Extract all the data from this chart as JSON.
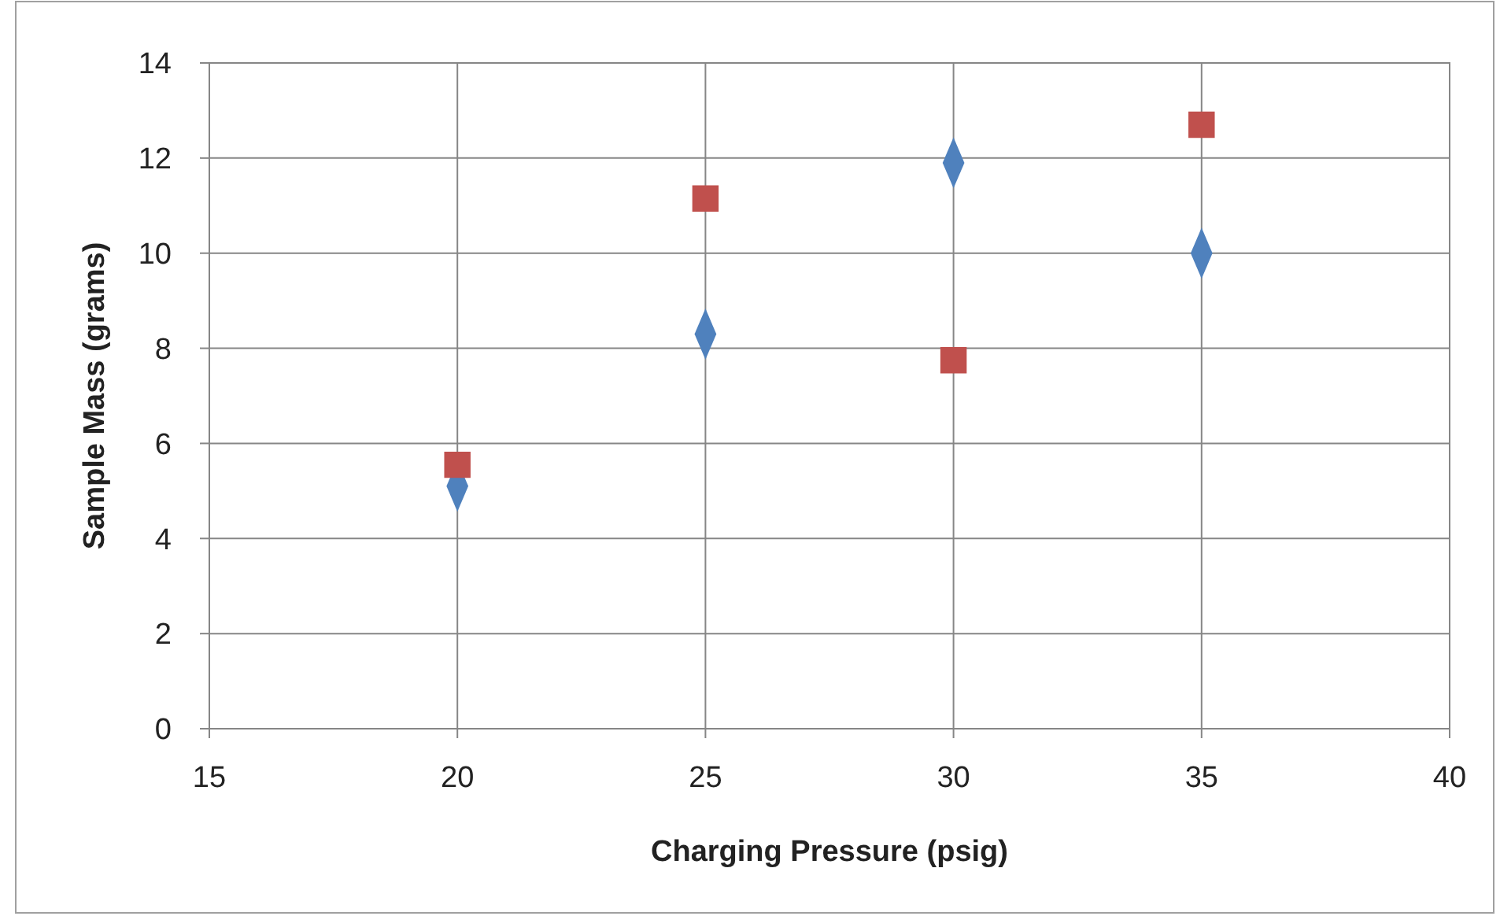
{
  "chart_data": {
    "type": "scatter",
    "xlabel": "Charging Pressure (psig)",
    "ylabel": "Sample Mass (grams)",
    "x": [
      20,
      25,
      30,
      35
    ],
    "series": [
      {
        "color": "#4f81bd",
        "marker": "diamond",
        "values": [
          5.1,
          8.3,
          11.9,
          10.0
        ]
      },
      {
        "color": "#c0504d",
        "marker": "square",
        "values": [
          5.55,
          11.15,
          7.75,
          12.7
        ]
      }
    ],
    "xlim": [
      15,
      40
    ],
    "xticks": [
      15,
      20,
      25,
      30,
      35,
      40
    ],
    "ylim": [
      0,
      14
    ],
    "yticks": [
      0,
      2,
      4,
      6,
      8,
      10,
      12,
      14
    ],
    "grid": true
  }
}
